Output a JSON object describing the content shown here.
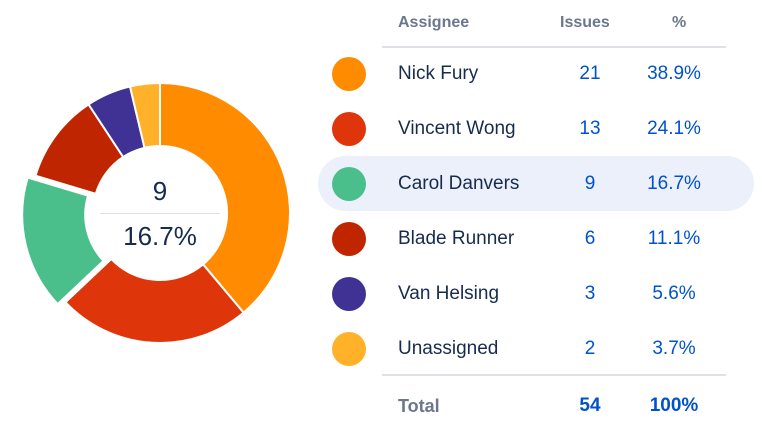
{
  "chart_data": {
    "type": "pie",
    "variant": "donut",
    "categories": [
      "Nick Fury",
      "Vincent Wong",
      "Carol Danvers",
      "Blade Runner",
      "Van Helsing",
      "Unassigned"
    ],
    "values": [
      21,
      13,
      9,
      6,
      3,
      2
    ],
    "percentages": [
      "38.9%",
      "24.1%",
      "16.7%",
      "11.1%",
      "5.6%",
      "3.7%"
    ],
    "colors": [
      "#ff8b00",
      "#de350b",
      "#4bbf8b",
      "#bf2600",
      "#403294",
      "#ffb12a"
    ],
    "highlighted_index": 2,
    "center": {
      "count": "9",
      "percent": "16.7%"
    }
  },
  "table": {
    "headers": {
      "assignee": "Assignee",
      "issues": "Issues",
      "percent": "%"
    },
    "rows": [
      {
        "name": "Nick Fury",
        "issues": "21",
        "percent": "38.9%"
      },
      {
        "name": "Vincent Wong",
        "issues": "13",
        "percent": "24.1%"
      },
      {
        "name": "Carol Danvers",
        "issues": "9",
        "percent": "16.7%"
      },
      {
        "name": "Blade Runner",
        "issues": "6",
        "percent": "11.1%"
      },
      {
        "name": "Van Helsing",
        "issues": "3",
        "percent": "5.6%"
      },
      {
        "name": "Unassigned",
        "issues": "2",
        "percent": "3.7%"
      }
    ],
    "total": {
      "label": "Total",
      "issues": "54",
      "percent": "100%"
    }
  }
}
